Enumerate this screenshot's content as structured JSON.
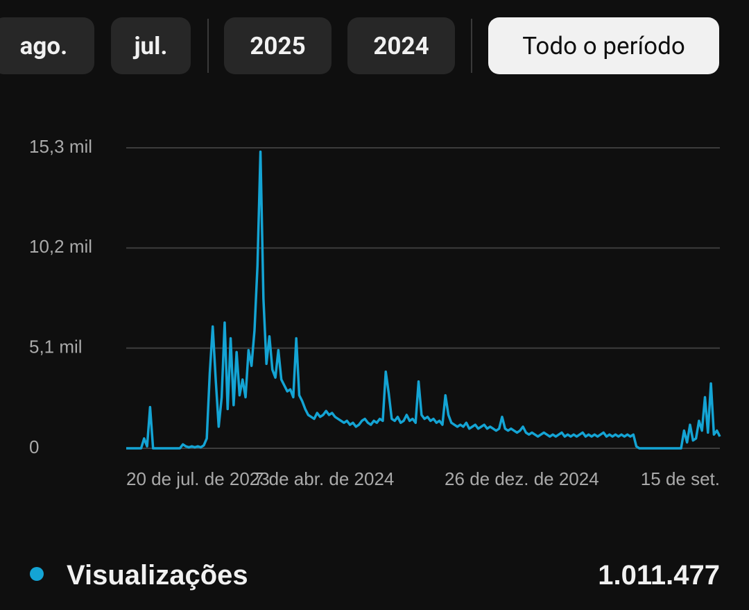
{
  "tabs": [
    {
      "label": "ago."
    },
    {
      "label": "jul."
    },
    {
      "label": "2025"
    },
    {
      "label": "2024"
    },
    {
      "label": "Todo o período",
      "active": true
    }
  ],
  "chart_data": {
    "type": "line",
    "series": [
      {
        "name": "Visualizações",
        "color": "#14a4d4",
        "values": [
          0,
          0,
          0,
          0,
          0,
          0,
          500,
          100,
          2100,
          0,
          0,
          0,
          0,
          0,
          0,
          0,
          0,
          0,
          0,
          200,
          100,
          50,
          100,
          50,
          100,
          50,
          150,
          500,
          3800,
          6200,
          3500,
          1100,
          2600,
          6400,
          2000,
          5600,
          2200,
          4900,
          2700,
          3500,
          2600,
          5000,
          4200,
          6000,
          9300,
          15100,
          7600,
          4300,
          5700,
          4000,
          3600,
          5000,
          3500,
          3200,
          2900,
          3000,
          2600,
          5600,
          2700,
          2400,
          2000,
          1700,
          1600,
          1500,
          1800,
          1600,
          1700,
          1900,
          1700,
          1800,
          1600,
          1500,
          1400,
          1300,
          1400,
          1200,
          1300,
          1100,
          1200,
          1400,
          1500,
          1300,
          1200,
          1400,
          1300,
          1500,
          1400,
          3900,
          2800,
          1500,
          1400,
          1600,
          1300,
          1400,
          1700,
          1400,
          1500,
          1300,
          3400,
          1700,
          1500,
          1600,
          1400,
          1500,
          1300,
          1400,
          1200,
          2700,
          1700,
          1300,
          1200,
          1100,
          1200,
          1100,
          1300,
          1000,
          1100,
          1200,
          1000,
          1100,
          1200,
          1000,
          1100,
          1000,
          900,
          1000,
          1600,
          1000,
          900,
          1000,
          900,
          800,
          900,
          1100,
          800,
          700,
          800,
          700,
          600,
          700,
          800,
          700,
          600,
          700,
          600,
          700,
          800,
          600,
          700,
          600,
          700,
          600,
          700,
          800,
          600,
          700,
          600,
          700,
          600,
          700,
          800,
          600,
          700,
          600,
          700,
          600,
          700,
          600,
          700,
          600,
          700,
          100,
          0,
          0,
          0,
          0,
          0,
          0,
          0,
          0,
          0,
          0,
          0,
          0,
          0,
          0,
          0,
          900,
          300,
          1200,
          400,
          500,
          1400,
          900,
          2600,
          800,
          3300,
          700,
          900,
          600
        ]
      }
    ],
    "xlim": [
      0,
      199
    ],
    "xticks": [
      {
        "value": 0,
        "label": "20 de jul. de 2023"
      },
      {
        "value": 66.3,
        "label": "7 de abr. de 2024"
      },
      {
        "value": 132.6,
        "label": "26 de dez. de 2024"
      },
      {
        "value": 199,
        "label": "15 de set."
      }
    ],
    "ylim": [
      0,
      15300
    ],
    "yticks": [
      0,
      {
        "value": 5100,
        "label": "5,1 mil"
      },
      {
        "value": 10200,
        "label": "10,2 mil"
      },
      {
        "value": 15300,
        "label": "15,3 mil"
      }
    ],
    "grid": true,
    "total": "1.011.477"
  }
}
